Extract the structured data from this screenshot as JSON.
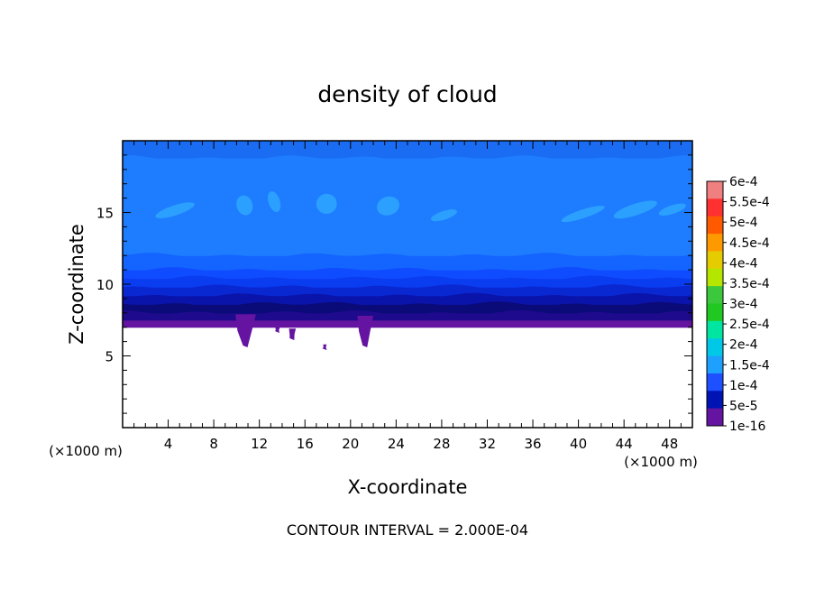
{
  "chart_data": {
    "type": "heatmap",
    "title": "density of cloud",
    "xlabel": "X-coordinate",
    "ylabel": "Z-coordinate",
    "x_unit_left": "(×1000 m)",
    "x_unit_right": "(×1000 m)",
    "xlim": [
      0,
      50
    ],
    "ylim": [
      0,
      20
    ],
    "x_ticks": [
      4,
      8,
      12,
      16,
      20,
      24,
      28,
      32,
      36,
      40,
      44,
      48
    ],
    "y_ticks": [
      5,
      10,
      15
    ],
    "footer": "CONTOUR INTERVAL = 2.000E-04",
    "colorbar": {
      "labels": [
        "6e-4",
        "5.5e-4",
        "5e-4",
        "4.5e-4",
        "4e-4",
        "3.5e-4",
        "3e-4",
        "2.5e-4",
        "2e-4",
        "1.5e-4",
        "1e-4",
        "5e-5",
        "1e-16"
      ],
      "colors": [
        "#f08080",
        "#ff3030",
        "#ff5a00",
        "#ff9900",
        "#e5cc00",
        "#b4e600",
        "#3cc83c",
        "#22c822",
        "#00e6a0",
        "#00c8e6",
        "#1ea0ff",
        "#1e50ff",
        "#0014b4",
        "#6414a0"
      ]
    },
    "field": {
      "cloud_base_z": 7.0,
      "cloud_top_z": 20,
      "levels": [
        {
          "z0": 7.0,
          "z1": 7.5,
          "color": "#6414a0"
        },
        {
          "z0": 7.5,
          "z1": 8.0,
          "color": "#1e0a8c"
        },
        {
          "z0": 8.0,
          "z1": 8.6,
          "color": "#0a0a78"
        },
        {
          "z0": 8.6,
          "z1": 9.2,
          "color": "#0a14aa"
        },
        {
          "z0": 9.2,
          "z1": 9.8,
          "color": "#0a28d2"
        },
        {
          "z0": 9.8,
          "z1": 10.4,
          "color": "#0a3cf0"
        },
        {
          "z0": 10.4,
          "z1": 11.0,
          "color": "#0f4cff"
        },
        {
          "z0": 11.0,
          "z1": 12.0,
          "color": "#1464ff"
        },
        {
          "z0": 12.0,
          "z1": 18.8,
          "color": "#1e7dff"
        },
        {
          "z0": 18.8,
          "z1": 20.0,
          "color": "#1a6cf2"
        }
      ],
      "patches": [
        {
          "x": 2.8,
          "z": 14.8,
          "w": 3.6,
          "h": 0.7,
          "color": "#2ca0ff"
        },
        {
          "x": 10.0,
          "z": 14.8,
          "w": 1.4,
          "h": 1.4,
          "color": "#2ca0ff"
        },
        {
          "x": 12.8,
          "z": 15.0,
          "w": 1.0,
          "h": 1.5,
          "color": "#2ca0ff"
        },
        {
          "x": 17.0,
          "z": 14.9,
          "w": 1.8,
          "h": 1.4,
          "color": "#2ca0ff"
        },
        {
          "x": 22.3,
          "z": 14.8,
          "w": 2.0,
          "h": 1.3,
          "color": "#2ca0ff"
        },
        {
          "x": 27.0,
          "z": 14.5,
          "w": 2.4,
          "h": 0.6,
          "color": "#2ca0ff"
        },
        {
          "x": 38.4,
          "z": 14.6,
          "w": 4.0,
          "h": 0.6,
          "color": "#2ca0ff"
        },
        {
          "x": 43.0,
          "z": 14.8,
          "w": 4.0,
          "h": 0.8,
          "color": "#2ca0ff"
        },
        {
          "x": 47.0,
          "z": 14.9,
          "w": 2.5,
          "h": 0.6,
          "color": "#2ca0ff"
        }
      ],
      "drizzle": [
        {
          "x": 9.9,
          "z": 5.6,
          "w": 1.8,
          "h": 2.3,
          "color": "#6414a0"
        },
        {
          "x": 20.6,
          "z": 5.6,
          "w": 1.4,
          "h": 2.2,
          "color": "#6414a0"
        },
        {
          "x": 14.6,
          "z": 6.1,
          "w": 0.6,
          "h": 0.8,
          "color": "#6414a0"
        },
        {
          "x": 13.4,
          "z": 6.6,
          "w": 0.4,
          "h": 0.4,
          "color": "#6414a0"
        },
        {
          "x": 17.6,
          "z": 5.4,
          "w": 0.3,
          "h": 0.4,
          "color": "#6414a0"
        }
      ]
    }
  }
}
